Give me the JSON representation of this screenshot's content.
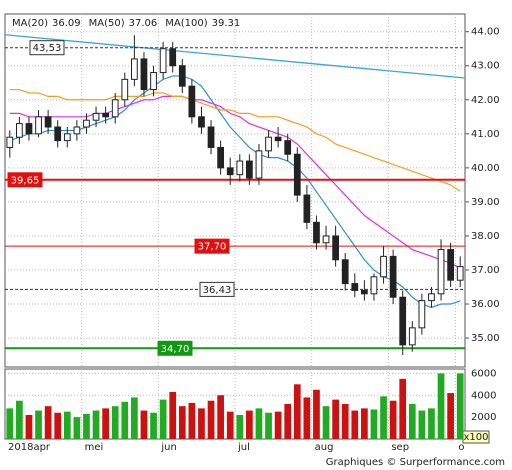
{
  "chart_data": {
    "type": "candlestick",
    "categories": [
      "2018apr",
      null,
      null,
      null,
      null,
      null,
      null,
      null,
      "mei",
      null,
      null,
      null,
      null,
      null,
      null,
      null,
      "jun",
      null,
      null,
      null,
      null,
      null,
      null,
      null,
      "jul",
      null,
      null,
      null,
      null,
      null,
      null,
      null,
      "aug",
      null,
      null,
      null,
      null,
      null,
      null,
      null,
      "sep",
      null,
      null,
      null,
      null,
      null,
      null,
      "o"
    ],
    "open": [
      40.6,
      40.9,
      41.3,
      41.0,
      41.5,
      41.2,
      40.8,
      41.0,
      41.2,
      41.4,
      41.6,
      41.5,
      42.0,
      42.6,
      43.2,
      42.3,
      42.8,
      43.5,
      43.0,
      42.4,
      41.5,
      41.2,
      40.6,
      40.0,
      39.8,
      40.2,
      39.7,
      40.5,
      40.9,
      40.8,
      40.4,
      39.2,
      38.4,
      37.8,
      38.0,
      37.3,
      36.6,
      36.4,
      36.3,
      36.8,
      37.4,
      36.2,
      34.8,
      35.3,
      36.1,
      36.3,
      37.6,
      36.7
    ],
    "high": [
      41.1,
      41.5,
      41.5,
      41.7,
      41.7,
      41.4,
      41.2,
      41.4,
      41.6,
      41.8,
      41.8,
      42.2,
      42.8,
      43.9,
      43.4,
      43.0,
      43.7,
      43.7,
      43.2,
      42.6,
      41.8,
      41.4,
      40.8,
      40.3,
      40.4,
      40.4,
      40.7,
      41.1,
      41.2,
      41.0,
      40.6,
      39.5,
      38.6,
      38.3,
      38.3,
      37.5,
      36.9,
      36.7,
      36.9,
      37.7,
      37.6,
      36.4,
      35.5,
      36.3,
      36.5,
      37.9,
      37.8,
      37.4
    ],
    "low": [
      40.3,
      40.7,
      40.8,
      40.9,
      41.0,
      40.6,
      40.6,
      40.8,
      41.0,
      41.2,
      41.3,
      41.3,
      41.8,
      42.4,
      42.1,
      42.1,
      42.6,
      42.8,
      42.2,
      41.3,
      41.0,
      40.4,
      39.8,
      39.5,
      39.6,
      39.5,
      39.5,
      40.3,
      40.6,
      40.2,
      39.0,
      38.2,
      37.6,
      37.6,
      37.1,
      36.4,
      36.2,
      36.1,
      36.1,
      36.6,
      36.0,
      34.5,
      34.6,
      35.1,
      35.9,
      36.1,
      36.5,
      36.5
    ],
    "close": [
      40.9,
      41.3,
      41.0,
      41.5,
      41.2,
      40.8,
      41.0,
      41.2,
      41.4,
      41.6,
      41.5,
      42.0,
      42.6,
      43.2,
      42.3,
      42.8,
      43.5,
      43.0,
      42.4,
      41.5,
      41.2,
      40.6,
      40.0,
      39.8,
      40.2,
      39.7,
      40.5,
      40.9,
      40.8,
      40.4,
      39.2,
      38.4,
      37.8,
      38.0,
      37.3,
      36.6,
      36.4,
      36.3,
      36.8,
      37.4,
      36.2,
      34.8,
      35.3,
      36.1,
      36.3,
      37.6,
      36.7,
      37.1
    ],
    "up_color": "#22aa22",
    "down_color": "#cc1111",
    "series": [
      {
        "name": "MA(20)",
        "color": "#2a8fd6",
        "values": [
          40.8,
          40.9,
          41.0,
          41.0,
          41.1,
          41.1,
          41.1,
          41.1,
          41.2,
          41.3,
          41.4,
          41.5,
          41.7,
          42.0,
          42.2,
          42.4,
          42.6,
          42.7,
          42.7,
          42.6,
          42.4,
          42.0,
          41.6,
          41.2,
          40.9,
          40.6,
          40.4,
          40.3,
          40.3,
          40.2,
          40.0,
          39.7,
          39.3,
          38.9,
          38.5,
          38.1,
          37.7,
          37.3,
          37.0,
          36.8,
          36.7,
          36.5,
          36.2,
          36.0,
          35.9,
          36.0,
          36.0,
          36.09
        ]
      },
      {
        "name": "MA(50)",
        "color": "#e030e0",
        "values": [
          41.6,
          41.6,
          41.5,
          41.5,
          41.5,
          41.5,
          41.5,
          41.5,
          41.5,
          41.6,
          41.6,
          41.7,
          41.8,
          41.9,
          42.0,
          42.0,
          42.1,
          42.1,
          42.1,
          42.0,
          42.0,
          41.9,
          41.8,
          41.6,
          41.5,
          41.3,
          41.2,
          41.1,
          41.0,
          40.9,
          40.7,
          40.4,
          40.1,
          39.8,
          39.5,
          39.2,
          38.9,
          38.6,
          38.4,
          38.2,
          38.0,
          37.8,
          37.6,
          37.5,
          37.4,
          37.3,
          37.2,
          37.06
        ]
      },
      {
        "name": "MA(100)",
        "color": "#f0a020",
        "values": [
          42.3,
          42.3,
          42.2,
          42.2,
          42.1,
          42.1,
          42.0,
          42.0,
          42.0,
          42.0,
          42.0,
          42.1,
          42.1,
          42.1,
          42.1,
          42.2,
          42.2,
          42.1,
          42.1,
          42.0,
          41.9,
          41.8,
          41.7,
          41.7,
          41.6,
          41.6,
          41.5,
          41.5,
          41.5,
          41.4,
          41.3,
          41.2,
          41.0,
          40.9,
          40.7,
          40.6,
          40.5,
          40.4,
          40.3,
          40.2,
          40.1,
          40.0,
          39.9,
          39.8,
          39.7,
          39.6,
          39.5,
          39.31
        ]
      }
    ],
    "trendline": {
      "color": "#3aa6d8",
      "values": [
        43.91,
        42.64
      ]
    },
    "levels": [
      {
        "value": 43.53,
        "label": "43,53",
        "color": "#333333",
        "dashed": true
      },
      {
        "value": 39.65,
        "label": "39,65",
        "color": "#e01010",
        "dashed": false,
        "bold": true
      },
      {
        "value": 37.7,
        "label": "37,70",
        "color": "#e01010",
        "dashed": false
      },
      {
        "value": 36.43,
        "label": "36,43",
        "color": "#333333",
        "dashed": true
      },
      {
        "value": 34.7,
        "label": "34,70",
        "color": "#119911",
        "dashed": false,
        "bold": true
      }
    ],
    "ylim": [
      34.15,
      44.52
    ],
    "yticks": [
      {
        "value": 35,
        "label": "35.00"
      },
      {
        "value": 36,
        "label": "36.00"
      },
      {
        "value": 37,
        "label": "37.00"
      },
      {
        "value": 38,
        "label": "38.00"
      },
      {
        "value": 39,
        "label": "39.00"
      },
      {
        "value": 40,
        "label": "40.00"
      },
      {
        "value": 41,
        "label": "41.00"
      },
      {
        "value": 42,
        "label": "42.00"
      },
      {
        "value": 43,
        "label": "43.00"
      },
      {
        "value": 44,
        "label": "44.00"
      }
    ],
    "volume": [
      2800,
      3500,
      2200,
      2600,
      3000,
      2400,
      2500,
      2000,
      2300,
      2600,
      2800,
      3000,
      3400,
      3800,
      2600,
      2400,
      3600,
      4300,
      3000,
      3300,
      2800,
      3500,
      4000,
      2500,
      2200,
      2600,
      2800,
      2400,
      2500,
      3200,
      5000,
      3800,
      4500,
      3000,
      3600,
      3200,
      2600,
      2800,
      2700,
      3900,
      3500,
      5500,
      3200,
      2600,
      2800,
      6000,
      4200,
      6000
    ],
    "volume_ylim": [
      0,
      6400
    ],
    "volume_yticks": [
      2000,
      4000,
      6000
    ],
    "volume_unit": "x100",
    "grid": true,
    "footer": "Graphiques © Surperformance.com"
  }
}
